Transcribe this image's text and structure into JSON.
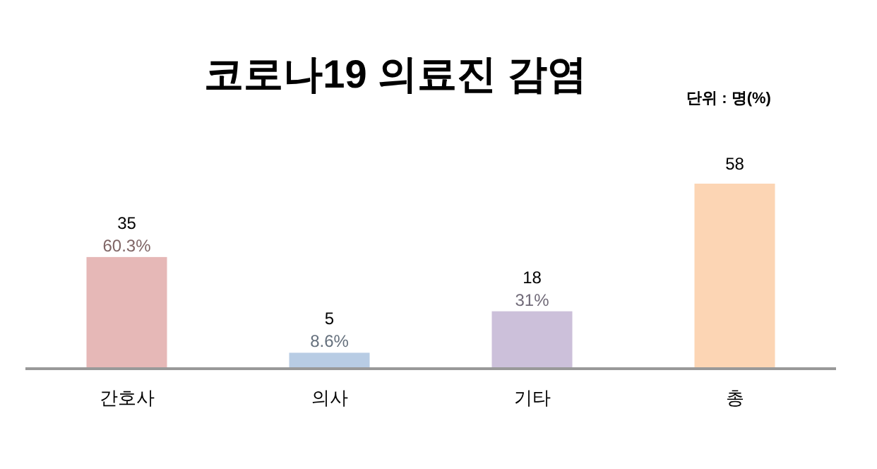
{
  "chart_data": {
    "type": "bar",
    "title": "코로나19 의료진 감염",
    "categories": [
      "간호사",
      "의사",
      "기타",
      "총"
    ],
    "values": [
      35,
      5,
      18,
      58
    ],
    "colors": [
      "#e6b8b7",
      "#b8cce4",
      "#ccc0da",
      "#fcd5b4"
    ],
    "data_labels": true,
    "annotations": [
      "단위 : 명(%)",
      {
        "text": "60.3%",
        "x": "간호사",
        "y": 35
      },
      {
        "text": "8.6%",
        "x": "의사",
        "y": 5
      },
      {
        "text": "31%",
        "x": "기타",
        "y": 18
      }
    ]
  }
}
